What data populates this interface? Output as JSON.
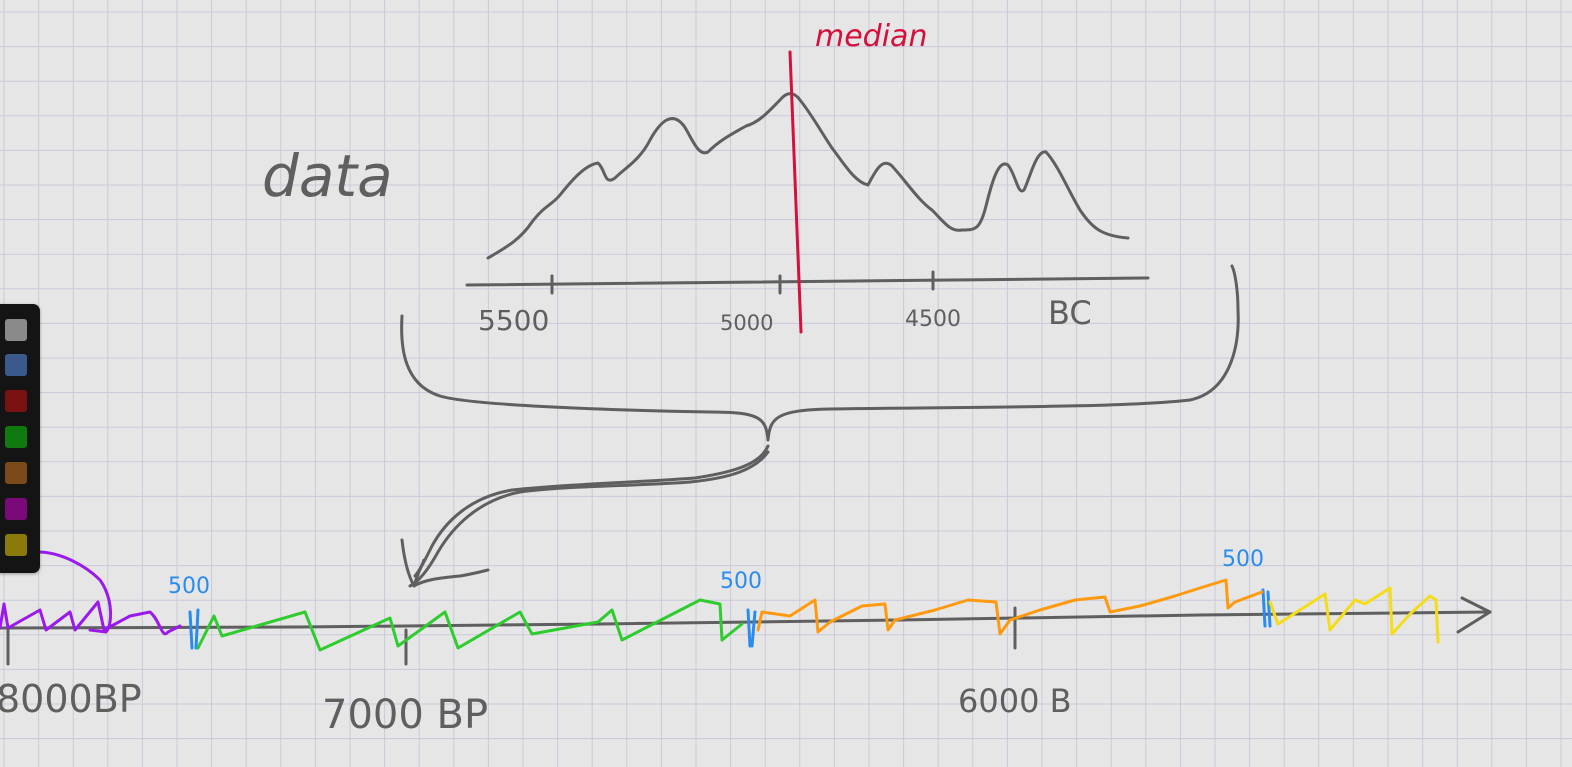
{
  "drawing": {
    "title_word": "data",
    "median_label": "median",
    "top_axis_ticks": [
      "5500",
      "5000",
      "4500"
    ],
    "top_axis_unit": "BC",
    "bottom_axis_labels": [
      "8000BP",
      "7000 BP",
      "6000 B"
    ],
    "segment_labels": [
      "500",
      "500",
      "500"
    ]
  },
  "palette": {
    "swatches": [
      {
        "name": "gray",
        "color": "#8a8a8a"
      },
      {
        "name": "blue",
        "color": "#3a5a8c"
      },
      {
        "name": "red",
        "color": "#7a1212"
      },
      {
        "name": "green",
        "color": "#0f7a0f"
      },
      {
        "name": "brown",
        "color": "#7a4a1a"
      },
      {
        "name": "purple",
        "color": "#7a0a7a"
      },
      {
        "name": "olive",
        "color": "#8a7a0a"
      }
    ]
  },
  "colors": {
    "ink": "#5f5f5f",
    "median": "#d6103c",
    "blue_ink": "#2a8cf0",
    "purple_ink": "#9a1aeb",
    "green_ink": "#2ecc2e",
    "orange_ink": "#ff9a10",
    "yellow_ink": "#f4dc18"
  }
}
